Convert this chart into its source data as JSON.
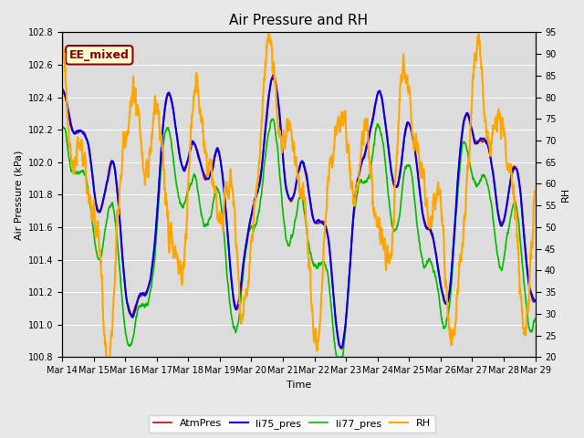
{
  "title": "Air Pressure and RH",
  "xlabel": "Time",
  "ylabel_left": "Air Pressure (kPa)",
  "ylabel_right": "RH",
  "ylim_left": [
    100.8,
    102.8
  ],
  "ylim_right": [
    20,
    95
  ],
  "yticks_left": [
    100.8,
    101.0,
    101.2,
    101.4,
    101.6,
    101.8,
    102.0,
    102.2,
    102.4,
    102.6,
    102.8
  ],
  "yticks_right": [
    20,
    25,
    30,
    35,
    40,
    45,
    50,
    55,
    60,
    65,
    70,
    75,
    80,
    85,
    90,
    95
  ],
  "xtick_labels": [
    "Mar 14",
    "Mar 15",
    "Mar 16",
    "Mar 17",
    "Mar 18",
    "Mar 19",
    "Mar 20",
    "Mar 21",
    "Mar 22",
    "Mar 23",
    "Mar 24",
    "Mar 25",
    "Mar 26",
    "Mar 27",
    "Mar 28",
    "Mar 29"
  ],
  "annotation_text": "EE_mixed",
  "annotation_color": "#8B0000",
  "annotation_bg": "#FFFACD",
  "bg_color": "#E8E8E8",
  "plot_bg_color": "#DCDCDC",
  "grid_color": "#FFFFFF",
  "colors": {
    "AtmPres": "#CC0000",
    "li75_pres": "#0000EE",
    "li77_pres": "#00BB00",
    "RH": "#FFA500"
  },
  "linewidths": {
    "AtmPres": 1.2,
    "li75_pres": 1.5,
    "li77_pres": 1.2,
    "RH": 1.5
  },
  "title_fontsize": 11,
  "axis_label_fontsize": 8,
  "tick_fontsize": 7,
  "legend_fontsize": 8,
  "annotation_fontsize": 9
}
